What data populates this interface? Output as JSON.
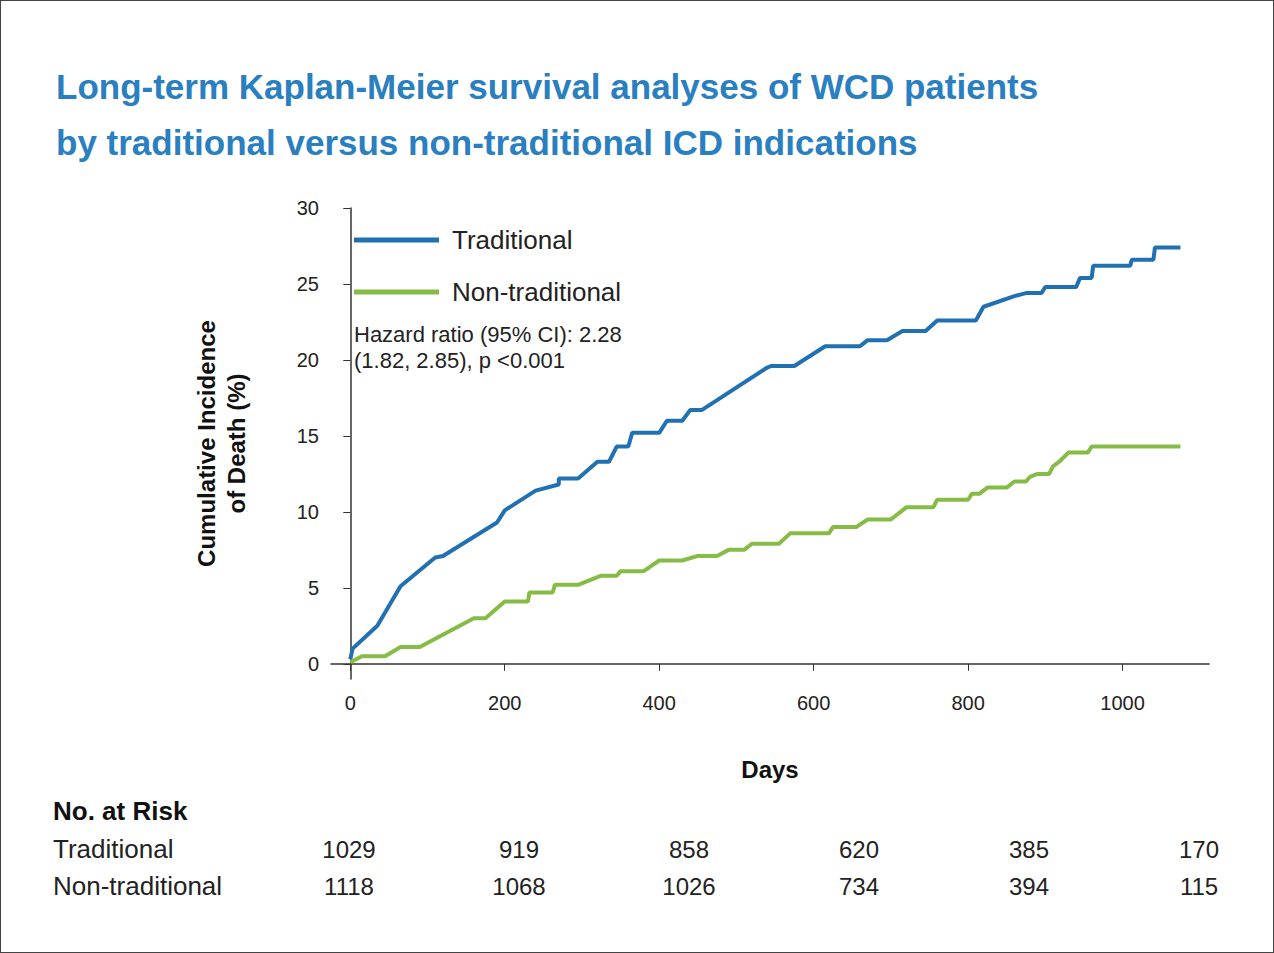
{
  "chart_data": {
    "type": "line",
    "title": "Long-term Kaplan-Meier survival analyses of WCD patients\nby traditional versus non-traditional ICD indications",
    "x_label": "Days",
    "y_label": "Cumulative Incidence\nof Death (%)",
    "xlim": [
      -25,
      1112
    ],
    "xticks": [
      0,
      200,
      400,
      600,
      800,
      1000
    ],
    "ylim": [
      -1,
      30
    ],
    "yticks": [
      0,
      5,
      10,
      15,
      20,
      25,
      30
    ],
    "grid": false,
    "legend": "upper left",
    "annotations": [
      "Hazard ratio (95% CI): 2.28\n(1.82, 2.85), p <0.001"
    ],
    "series": [
      {
        "name": "Traditional",
        "color": "#2170b2",
        "x": [
          0,
          3,
          35,
          65,
          110,
          120,
          190,
          200,
          240,
          270,
          270,
          295,
          320,
          335,
          345,
          360,
          365,
          400,
          410,
          430,
          440,
          455,
          540,
          545,
          575,
          615,
          660,
          670,
          695,
          715,
          745,
          760,
          810,
          820,
          860,
          875,
          895,
          900,
          940,
          945,
          960,
          962,
          1010,
          1012,
          1040,
          1042,
          1075
        ],
        "values": [
          0.3,
          1,
          2.5,
          5.1,
          7,
          7.1,
          9.3,
          10.1,
          11.4,
          11.8,
          12.2,
          12.2,
          13.3,
          13.3,
          14.3,
          14.3,
          15.2,
          15.2,
          16,
          16,
          16.7,
          16.7,
          19.5,
          19.6,
          19.6,
          20.9,
          20.9,
          21.3,
          21.3,
          21.9,
          21.9,
          22.6,
          22.6,
          23.5,
          24.2,
          24.4,
          24.4,
          24.8,
          24.8,
          25.4,
          25.4,
          26.2,
          26.2,
          26.6,
          26.6,
          27.4,
          27.4
        ]
      },
      {
        "name": "Non-traditional",
        "color": "#86bc45",
        "x": [
          0,
          15,
          45,
          65,
          90,
          160,
          175,
          200,
          230,
          232,
          262,
          265,
          295,
          325,
          345,
          350,
          380,
          400,
          430,
          450,
          475,
          490,
          510,
          520,
          555,
          570,
          620,
          625,
          655,
          670,
          700,
          720,
          755,
          760,
          800,
          805,
          815,
          825,
          850,
          860,
          875,
          880,
          890,
          905,
          910,
          918,
          930,
          955,
          960,
          1075
        ],
        "values": [
          0.1,
          0.5,
          0.5,
          1.1,
          1.1,
          3,
          3,
          4.1,
          4.1,
          4.7,
          4.7,
          5.2,
          5.2,
          5.8,
          5.8,
          6.1,
          6.1,
          6.8,
          6.8,
          7.1,
          7.1,
          7.5,
          7.5,
          7.9,
          7.9,
          8.6,
          8.6,
          9,
          9,
          9.5,
          9.5,
          10.3,
          10.3,
          10.8,
          10.8,
          11.2,
          11.2,
          11.6,
          11.6,
          12,
          12,
          12.3,
          12.5,
          12.5,
          13,
          13.3,
          13.9,
          13.9,
          14.3,
          14.3
        ]
      }
    ],
    "risk_table": {
      "title": "No. at Risk",
      "rows": [
        {
          "name": "Traditional",
          "values": [
            1029,
            919,
            858,
            620,
            385,
            170
          ]
        },
        {
          "name": "Non-traditional",
          "values": [
            1118,
            1068,
            1026,
            734,
            394,
            115
          ]
        }
      ]
    }
  }
}
